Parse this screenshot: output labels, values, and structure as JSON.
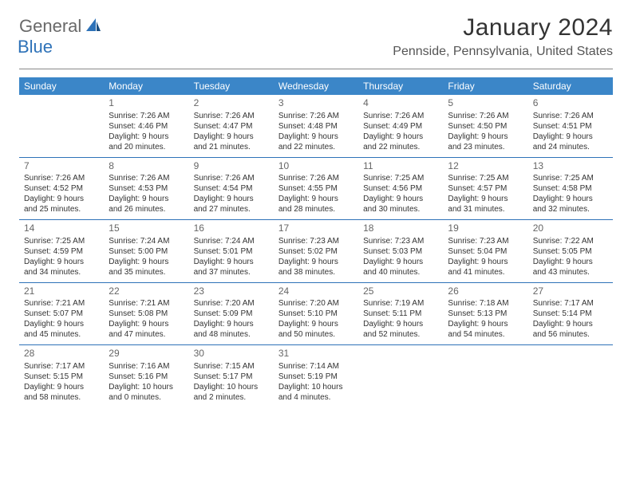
{
  "logo": {
    "general": "General",
    "blue": "Blue"
  },
  "header": {
    "month_title": "January 2024",
    "location": "Pennside, Pennsylvania, United States"
  },
  "colors": {
    "header_bg": "#3b86c8",
    "rule": "#2e72b8",
    "logo_gray": "#696969",
    "logo_blue": "#2e72b8"
  },
  "calendar": {
    "columns": [
      "Sunday",
      "Monday",
      "Tuesday",
      "Wednesday",
      "Thursday",
      "Friday",
      "Saturday"
    ],
    "weeks": [
      [
        null,
        {
          "n": "1",
          "sr": "Sunrise: 7:26 AM",
          "ss": "Sunset: 4:46 PM",
          "d1": "Daylight: 9 hours",
          "d2": "and 20 minutes."
        },
        {
          "n": "2",
          "sr": "Sunrise: 7:26 AM",
          "ss": "Sunset: 4:47 PM",
          "d1": "Daylight: 9 hours",
          "d2": "and 21 minutes."
        },
        {
          "n": "3",
          "sr": "Sunrise: 7:26 AM",
          "ss": "Sunset: 4:48 PM",
          "d1": "Daylight: 9 hours",
          "d2": "and 22 minutes."
        },
        {
          "n": "4",
          "sr": "Sunrise: 7:26 AM",
          "ss": "Sunset: 4:49 PM",
          "d1": "Daylight: 9 hours",
          "d2": "and 22 minutes."
        },
        {
          "n": "5",
          "sr": "Sunrise: 7:26 AM",
          "ss": "Sunset: 4:50 PM",
          "d1": "Daylight: 9 hours",
          "d2": "and 23 minutes."
        },
        {
          "n": "6",
          "sr": "Sunrise: 7:26 AM",
          "ss": "Sunset: 4:51 PM",
          "d1": "Daylight: 9 hours",
          "d2": "and 24 minutes."
        }
      ],
      [
        {
          "n": "7",
          "sr": "Sunrise: 7:26 AM",
          "ss": "Sunset: 4:52 PM",
          "d1": "Daylight: 9 hours",
          "d2": "and 25 minutes."
        },
        {
          "n": "8",
          "sr": "Sunrise: 7:26 AM",
          "ss": "Sunset: 4:53 PM",
          "d1": "Daylight: 9 hours",
          "d2": "and 26 minutes."
        },
        {
          "n": "9",
          "sr": "Sunrise: 7:26 AM",
          "ss": "Sunset: 4:54 PM",
          "d1": "Daylight: 9 hours",
          "d2": "and 27 minutes."
        },
        {
          "n": "10",
          "sr": "Sunrise: 7:26 AM",
          "ss": "Sunset: 4:55 PM",
          "d1": "Daylight: 9 hours",
          "d2": "and 28 minutes."
        },
        {
          "n": "11",
          "sr": "Sunrise: 7:25 AM",
          "ss": "Sunset: 4:56 PM",
          "d1": "Daylight: 9 hours",
          "d2": "and 30 minutes."
        },
        {
          "n": "12",
          "sr": "Sunrise: 7:25 AM",
          "ss": "Sunset: 4:57 PM",
          "d1": "Daylight: 9 hours",
          "d2": "and 31 minutes."
        },
        {
          "n": "13",
          "sr": "Sunrise: 7:25 AM",
          "ss": "Sunset: 4:58 PM",
          "d1": "Daylight: 9 hours",
          "d2": "and 32 minutes."
        }
      ],
      [
        {
          "n": "14",
          "sr": "Sunrise: 7:25 AM",
          "ss": "Sunset: 4:59 PM",
          "d1": "Daylight: 9 hours",
          "d2": "and 34 minutes."
        },
        {
          "n": "15",
          "sr": "Sunrise: 7:24 AM",
          "ss": "Sunset: 5:00 PM",
          "d1": "Daylight: 9 hours",
          "d2": "and 35 minutes."
        },
        {
          "n": "16",
          "sr": "Sunrise: 7:24 AM",
          "ss": "Sunset: 5:01 PM",
          "d1": "Daylight: 9 hours",
          "d2": "and 37 minutes."
        },
        {
          "n": "17",
          "sr": "Sunrise: 7:23 AM",
          "ss": "Sunset: 5:02 PM",
          "d1": "Daylight: 9 hours",
          "d2": "and 38 minutes."
        },
        {
          "n": "18",
          "sr": "Sunrise: 7:23 AM",
          "ss": "Sunset: 5:03 PM",
          "d1": "Daylight: 9 hours",
          "d2": "and 40 minutes."
        },
        {
          "n": "19",
          "sr": "Sunrise: 7:23 AM",
          "ss": "Sunset: 5:04 PM",
          "d1": "Daylight: 9 hours",
          "d2": "and 41 minutes."
        },
        {
          "n": "20",
          "sr": "Sunrise: 7:22 AM",
          "ss": "Sunset: 5:05 PM",
          "d1": "Daylight: 9 hours",
          "d2": "and 43 minutes."
        }
      ],
      [
        {
          "n": "21",
          "sr": "Sunrise: 7:21 AM",
          "ss": "Sunset: 5:07 PM",
          "d1": "Daylight: 9 hours",
          "d2": "and 45 minutes."
        },
        {
          "n": "22",
          "sr": "Sunrise: 7:21 AM",
          "ss": "Sunset: 5:08 PM",
          "d1": "Daylight: 9 hours",
          "d2": "and 47 minutes."
        },
        {
          "n": "23",
          "sr": "Sunrise: 7:20 AM",
          "ss": "Sunset: 5:09 PM",
          "d1": "Daylight: 9 hours",
          "d2": "and 48 minutes."
        },
        {
          "n": "24",
          "sr": "Sunrise: 7:20 AM",
          "ss": "Sunset: 5:10 PM",
          "d1": "Daylight: 9 hours",
          "d2": "and 50 minutes."
        },
        {
          "n": "25",
          "sr": "Sunrise: 7:19 AM",
          "ss": "Sunset: 5:11 PM",
          "d1": "Daylight: 9 hours",
          "d2": "and 52 minutes."
        },
        {
          "n": "26",
          "sr": "Sunrise: 7:18 AM",
          "ss": "Sunset: 5:13 PM",
          "d1": "Daylight: 9 hours",
          "d2": "and 54 minutes."
        },
        {
          "n": "27",
          "sr": "Sunrise: 7:17 AM",
          "ss": "Sunset: 5:14 PM",
          "d1": "Daylight: 9 hours",
          "d2": "and 56 minutes."
        }
      ],
      [
        {
          "n": "28",
          "sr": "Sunrise: 7:17 AM",
          "ss": "Sunset: 5:15 PM",
          "d1": "Daylight: 9 hours",
          "d2": "and 58 minutes."
        },
        {
          "n": "29",
          "sr": "Sunrise: 7:16 AM",
          "ss": "Sunset: 5:16 PM",
          "d1": "Daylight: 10 hours",
          "d2": "and 0 minutes."
        },
        {
          "n": "30",
          "sr": "Sunrise: 7:15 AM",
          "ss": "Sunset: 5:17 PM",
          "d1": "Daylight: 10 hours",
          "d2": "and 2 minutes."
        },
        {
          "n": "31",
          "sr": "Sunrise: 7:14 AM",
          "ss": "Sunset: 5:19 PM",
          "d1": "Daylight: 10 hours",
          "d2": "and 4 minutes."
        },
        null,
        null,
        null
      ]
    ]
  }
}
